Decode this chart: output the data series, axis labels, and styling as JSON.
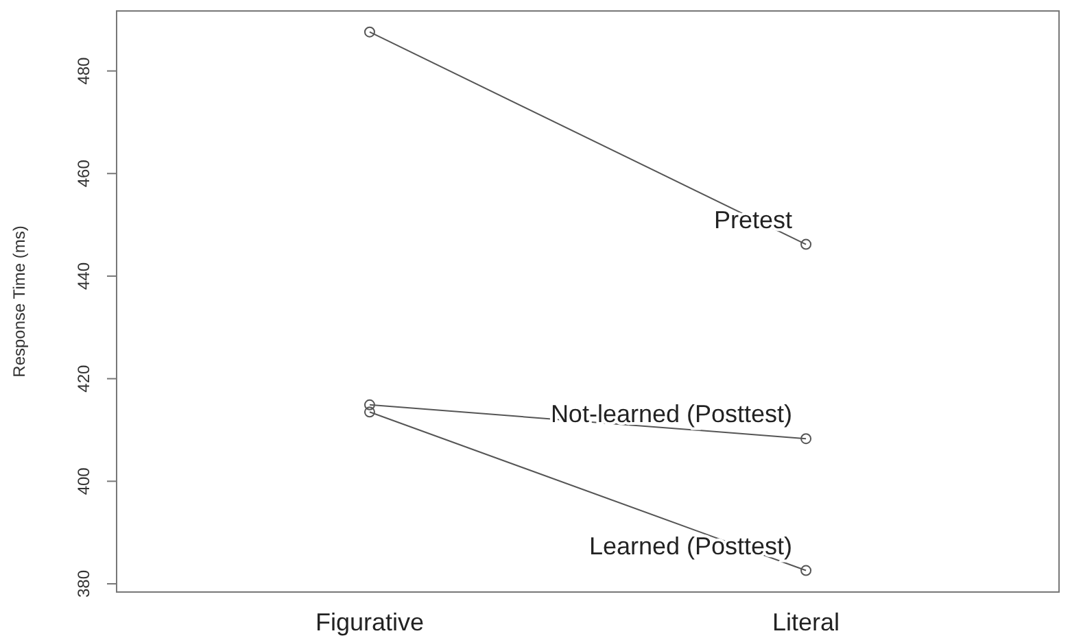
{
  "chart_data": {
    "type": "line",
    "ylabel": "Response Time (ms)",
    "categories": [
      "Figurative",
      "Literal"
    ],
    "series": [
      {
        "name": "Pretest",
        "color": "#555555",
        "values": [
          487.6,
          446.2
        ]
      },
      {
        "name": "Not-learned (Posttest)",
        "color": "#555555",
        "values": [
          414.9,
          408.3
        ]
      },
      {
        "name": "Learned (Posttest)",
        "color": "#555555",
        "values": [
          413.5,
          382.6
        ]
      }
    ],
    "ylim": [
      378.4,
      491.7
    ],
    "yticks": [
      380,
      400,
      420,
      440,
      460,
      480
    ],
    "marker": "circle",
    "line_style": "solid"
  }
}
